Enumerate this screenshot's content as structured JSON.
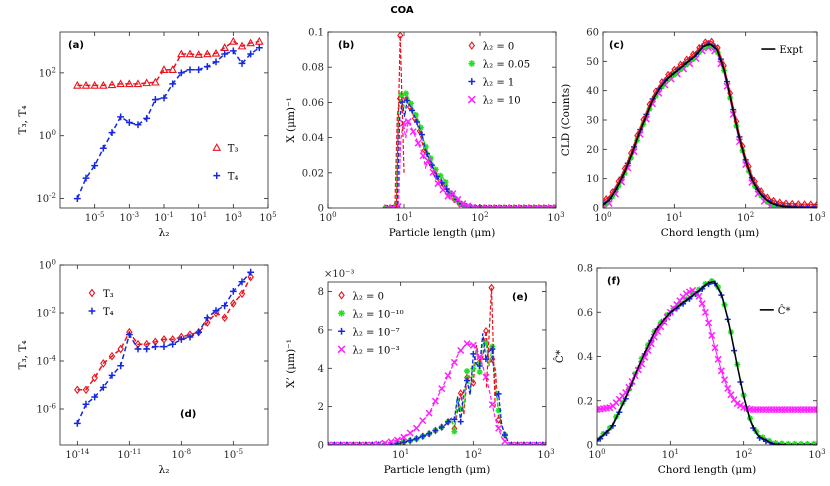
{
  "figure": {
    "title": "COA"
  },
  "colors": {
    "red": "#e8141e",
    "blue": "#1428e0",
    "green": "#22e022",
    "magenta": "#ff22ff",
    "black": "#000000"
  },
  "chart_data": [
    {
      "id": "a",
      "panel_label": "(a)",
      "type": "scatter",
      "xscale": "log",
      "yscale": "log",
      "xlim": [
        -7,
        5
      ],
      "ylim": [
        -2.3,
        3.3
      ],
      "xticks": [
        {
          "v": -5,
          "label": "10",
          "sup": "-5"
        },
        {
          "v": -3,
          "label": "10",
          "sup": "-3"
        },
        {
          "v": -1,
          "label": "10",
          "sup": "-1"
        },
        {
          "v": 1,
          "label": "10",
          "sup": "1"
        },
        {
          "v": 3,
          "label": "10",
          "sup": "3"
        },
        {
          "v": 5,
          "label": "10",
          "sup": "5"
        }
      ],
      "yticks": [
        {
          "v": -2,
          "label": "10",
          "sup": "-2"
        },
        {
          "v": 0,
          "label": "10",
          "sup": "0"
        },
        {
          "v": 2,
          "label": "10",
          "sup": "2"
        }
      ],
      "xlabel": "λ₂",
      "ylabel": "T₃, T₄",
      "series": [
        {
          "name": "T₃",
          "color": "red",
          "marker": "triangle",
          "dashed": true,
          "x": [
            -6,
            -5.5,
            -5,
            -4.5,
            -4,
            -3.5,
            -3,
            -2.5,
            -2,
            -1.5,
            -1,
            -0.5,
            0,
            0.5,
            1,
            1.5,
            2,
            2.5,
            3,
            3.5,
            4,
            4.5
          ],
          "y": [
            1.6,
            1.6,
            1.6,
            1.6,
            1.62,
            1.65,
            1.65,
            1.65,
            1.68,
            1.7,
            2.1,
            2.1,
            2.6,
            2.6,
            2.58,
            2.6,
            2.62,
            2.8,
            3.0,
            2.85,
            2.95,
            3.0
          ]
        },
        {
          "name": "T₄",
          "color": "blue",
          "marker": "plus",
          "dashed": true,
          "x": [
            -6,
            -5.5,
            -5,
            -4.5,
            -4,
            -3.5,
            -3,
            -2.5,
            -2,
            -1.5,
            -1,
            -0.5,
            0,
            0.5,
            1,
            1.5,
            2,
            2.5,
            3,
            3.5,
            4,
            4.5
          ],
          "y": [
            -2.0,
            -1.35,
            -0.95,
            -0.4,
            0.1,
            0.6,
            0.42,
            0.35,
            0.55,
            1.15,
            1.2,
            1.65,
            2.0,
            2.1,
            2.1,
            2.2,
            2.35,
            2.6,
            2.7,
            2.3,
            2.6,
            2.8
          ]
        }
      ],
      "legend": {
        "position": "lower-right",
        "entries": [
          "T₃",
          "T₄"
        ]
      }
    },
    {
      "id": "b",
      "panel_label": "(b)",
      "type": "line",
      "xscale": "log",
      "yscale": "linear",
      "xlim": [
        0,
        3
      ],
      "ylim": [
        0,
        0.1
      ],
      "xticks": [
        {
          "v": 0,
          "label": "10",
          "sup": "0"
        },
        {
          "v": 1,
          "label": "10",
          "sup": "1"
        },
        {
          "v": 2,
          "label": "10",
          "sup": "2"
        },
        {
          "v": 3,
          "label": "10",
          "sup": "3"
        }
      ],
      "yticks": [
        {
          "v": 0,
          "label": "0"
        },
        {
          "v": 0.02,
          "label": "0.02"
        },
        {
          "v": 0.04,
          "label": "0.04"
        },
        {
          "v": 0.06,
          "label": "0.06"
        },
        {
          "v": 0.08,
          "label": "0.08"
        },
        {
          "v": 0.1,
          "label": "0.1"
        }
      ],
      "xlabel": "Particle length (μm)",
      "ylabel": "X (μm)⁻¹",
      "series": [
        {
          "name": "λ₂ = 0",
          "color": "red",
          "marker": "diamond"
        },
        {
          "name": "λ₂ = 0.05",
          "color": "green",
          "marker": "asterisk"
        },
        {
          "name": "λ₂ = 1",
          "color": "blue",
          "marker": "plus"
        },
        {
          "name": "λ₂ = 10",
          "color": "magenta",
          "marker": "cross"
        }
      ],
      "curve_shape": {
        "x": [
          0.0,
          0.8,
          0.88,
          0.9,
          0.93,
          0.97,
          1.0,
          1.05,
          1.1,
          1.15,
          1.2,
          1.25,
          1.3,
          1.35,
          1.4,
          1.45,
          1.5,
          1.6,
          1.7,
          1.8,
          1.9,
          2.0,
          2.5,
          3.0
        ],
        "y": [
          0.0,
          0.0,
          0.0,
          0.04,
          0.07,
          0.05,
          0.064,
          0.06,
          0.055,
          0.05,
          0.045,
          0.035,
          0.03,
          0.025,
          0.02,
          0.017,
          0.015,
          0.008,
          0.003,
          0.001,
          0.0,
          0.0,
          0.0,
          0.0
        ]
      },
      "annotations": {
        "red_peak_x": 0.95,
        "red_peak_y": 0.098
      },
      "legend": {
        "position": "top-right",
        "entries": [
          "λ₂ = 0",
          "λ₂ = 0.05",
          "λ₂ = 1",
          "λ₂ = 10"
        ]
      }
    },
    {
      "id": "c",
      "panel_label": "(c)",
      "type": "line",
      "xscale": "log",
      "yscale": "linear",
      "xlim": [
        0,
        3
      ],
      "ylim": [
        0,
        60
      ],
      "xticks": [
        {
          "v": 0,
          "label": "10",
          "sup": "0"
        },
        {
          "v": 1,
          "label": "10",
          "sup": "1"
        },
        {
          "v": 2,
          "label": "10",
          "sup": "2"
        },
        {
          "v": 3,
          "label": "10",
          "sup": "3"
        }
      ],
      "yticks": [
        {
          "v": 0,
          "label": "0"
        },
        {
          "v": 10,
          "label": "10"
        },
        {
          "v": 20,
          "label": "20"
        },
        {
          "v": 30,
          "label": "30"
        },
        {
          "v": 40,
          "label": "40"
        },
        {
          "v": 50,
          "label": "50"
        },
        {
          "v": 60,
          "label": "60"
        }
      ],
      "xlabel": "Chord length (μm)",
      "ylabel": "CLD (Counts)",
      "expt_curve": {
        "x": [
          0.0,
          0.1,
          0.2,
          0.3,
          0.4,
          0.5,
          0.6,
          0.7,
          0.8,
          0.9,
          1.0,
          1.1,
          1.2,
          1.3,
          1.4,
          1.5,
          1.6,
          1.7,
          1.8,
          1.9,
          2.0,
          2.1,
          2.2,
          2.3,
          2.4,
          2.5,
          2.6,
          2.8,
          3.0
        ],
        "y": [
          1,
          3,
          7,
          12,
          18,
          25,
          31,
          37,
          41,
          44,
          46,
          48,
          50,
          52,
          55,
          56,
          54,
          47,
          36,
          25,
          16,
          9,
          5,
          2.5,
          1.2,
          0.6,
          0.3,
          0.1,
          0
        ]
      },
      "legend": {
        "position": "top-right",
        "entries": [
          "Expt"
        ]
      }
    },
    {
      "id": "d",
      "panel_label": "(d)",
      "type": "scatter",
      "xscale": "log",
      "yscale": "log",
      "xlim": [
        -15,
        -3
      ],
      "ylim": [
        -7.5,
        0
      ],
      "xticks": [
        {
          "v": -14,
          "label": "10",
          "sup": "-14"
        },
        {
          "v": -11,
          "label": "10",
          "sup": "-11"
        },
        {
          "v": -8,
          "label": "10",
          "sup": "-8"
        },
        {
          "v": -5,
          "label": "10",
          "sup": "-5"
        }
      ],
      "yticks": [
        {
          "v": -6,
          "label": "10",
          "sup": "-6"
        },
        {
          "v": -4,
          "label": "10",
          "sup": "-4"
        },
        {
          "v": -2,
          "label": "10",
          "sup": "-2"
        },
        {
          "v": 0,
          "label": "10",
          "sup": "0"
        }
      ],
      "xlabel": "λ₂",
      "ylabel": "T₃, T₄",
      "series": [
        {
          "name": "T₃",
          "color": "red",
          "marker": "diamond",
          "dashed": true,
          "x": [
            -14,
            -13.5,
            -13,
            -12.5,
            -12,
            -11.5,
            -11,
            -10.5,
            -10,
            -9.5,
            -9,
            -8.5,
            -8,
            -7.5,
            -7,
            -6.5,
            -6,
            -5.5,
            -5,
            -4.5,
            -4
          ],
          "y": [
            -5.2,
            -5.2,
            -4.7,
            -4.1,
            -3.8,
            -3.5,
            -2.8,
            -3.3,
            -3.3,
            -3.2,
            -3.1,
            -3.1,
            -3.0,
            -2.9,
            -2.8,
            -2.4,
            -2.0,
            -2.2,
            -1.6,
            -1.2,
            -0.5
          ]
        },
        {
          "name": "T₄",
          "color": "blue",
          "marker": "plus",
          "dashed": true,
          "x": [
            -14,
            -13.5,
            -13,
            -12.5,
            -12,
            -11.5,
            -11,
            -10.5,
            -10,
            -9.5,
            -9,
            -8.5,
            -8,
            -7.5,
            -7,
            -6.5,
            -6,
            -5.5,
            -5,
            -4.5,
            -4
          ],
          "y": [
            -6.6,
            -5.8,
            -5.5,
            -5.1,
            -4.6,
            -4.2,
            -2.9,
            -3.5,
            -3.5,
            -3.4,
            -3.4,
            -3.3,
            -3.1,
            -3.0,
            -2.8,
            -2.2,
            -1.9,
            -1.7,
            -1.1,
            -0.7,
            -0.3
          ]
        }
      ],
      "legend": {
        "position": "top-left",
        "entries": [
          "T₃",
          "T₄"
        ]
      }
    },
    {
      "id": "e",
      "panel_label": "(e)",
      "type": "line",
      "xscale": "log",
      "yscale": "linear",
      "xlim": [
        0,
        3
      ],
      "ylim": [
        0,
        0.0085
      ],
      "exponent_note": "×10⁻³",
      "xticks": [
        {
          "v": 1,
          "label": "10",
          "sup": "1"
        },
        {
          "v": 2,
          "label": "10",
          "sup": "2"
        },
        {
          "v": 3,
          "label": "10",
          "sup": "3"
        }
      ],
      "yticks": [
        {
          "v": 0,
          "label": "0"
        },
        {
          "v": 0.002,
          "label": "2"
        },
        {
          "v": 0.004,
          "label": "4"
        },
        {
          "v": 0.006,
          "label": "6"
        },
        {
          "v": 0.008,
          "label": "8"
        }
      ],
      "xlabel": "Particle length (μm)",
      "ylabel": "X’ (μm)⁻¹",
      "series": [
        {
          "name": "λ₂ = 0",
          "color": "red",
          "marker": "diamond"
        },
        {
          "name": "λ₂ = 10⁻¹⁰",
          "color": "green",
          "marker": "asterisk"
        },
        {
          "name": "λ₂ = 10⁻⁷",
          "color": "blue",
          "marker": "plus"
        },
        {
          "name": "λ₂ = 10⁻³",
          "color": "magenta",
          "marker": "cross"
        }
      ],
      "curve_main": {
        "x": [
          0.0,
          0.8,
          1.0,
          1.2,
          1.4,
          1.6,
          1.8,
          1.9,
          2.0,
          2.1,
          2.2,
          2.25,
          2.3,
          2.4,
          2.5,
          3.0
        ],
        "y": [
          0,
          0,
          0.0001,
          0.0003,
          0.0006,
          0.001,
          0.0018,
          0.0028,
          0.004,
          0.0048,
          0.0052,
          0.0045,
          0.0035,
          0.0008,
          0,
          0
        ]
      },
      "curve_magenta": {
        "x": [
          0.0,
          0.6,
          0.8,
          1.0,
          1.2,
          1.4,
          1.6,
          1.8,
          1.9,
          2.0,
          2.1,
          2.2,
          2.3,
          2.4,
          2.5,
          3.0
        ],
        "y": [
          0,
          0,
          0.0001,
          0.0003,
          0.0008,
          0.0017,
          0.0032,
          0.0048,
          0.0053,
          0.0052,
          0.0045,
          0.0032,
          0.0014,
          0.0003,
          0,
          0
        ]
      },
      "annotations": {
        "red_peak_x": 2.25,
        "red_peak_y": 0.0082
      },
      "legend": {
        "position": "top-left",
        "entries": [
          "λ₂ = 0",
          "λ₂ = 10⁻¹⁰",
          "λ₂ = 10⁻⁷",
          "λ₂ = 10⁻³"
        ]
      }
    },
    {
      "id": "f",
      "panel_label": "(f)",
      "type": "line",
      "xscale": "log",
      "yscale": "linear",
      "xlim": [
        0,
        3
      ],
      "ylim": [
        0,
        0.8
      ],
      "xticks": [
        {
          "v": 0,
          "label": "10",
          "sup": "0"
        },
        {
          "v": 1,
          "label": "10",
          "sup": "1"
        },
        {
          "v": 2,
          "label": "10",
          "sup": "2"
        },
        {
          "v": 3,
          "label": "10",
          "sup": "3"
        }
      ],
      "yticks": [
        {
          "v": 0,
          "label": "0"
        },
        {
          "v": 0.2,
          "label": "0.2"
        },
        {
          "v": 0.4,
          "label": "0.4"
        },
        {
          "v": 0.6,
          "label": "0.6"
        },
        {
          "v": 0.8,
          "label": "0.8"
        }
      ],
      "xlabel": "Chord length (μm)",
      "ylabel": "Ĉ*",
      "expt_curve": {
        "x": [
          0.0,
          0.2,
          0.4,
          0.6,
          0.8,
          1.0,
          1.2,
          1.4,
          1.5,
          1.6,
          1.7,
          1.8,
          1.9,
          2.0,
          2.1,
          2.2,
          2.4,
          2.6,
          3.0
        ],
        "y": [
          0.02,
          0.08,
          0.22,
          0.38,
          0.52,
          0.6,
          0.65,
          0.7,
          0.73,
          0.74,
          0.68,
          0.55,
          0.38,
          0.22,
          0.1,
          0.04,
          0.005,
          0,
          0
        ]
      },
      "magenta_curve": {
        "x": [
          0.0,
          0.2,
          0.4,
          0.6,
          0.8,
          1.0,
          1.1,
          1.2,
          1.3,
          1.4,
          1.5,
          1.6,
          1.7,
          1.8,
          1.9,
          2.0,
          2.1,
          2.2,
          2.4,
          3.0
        ],
        "y": [
          0.16,
          0.17,
          0.24,
          0.36,
          0.5,
          0.6,
          0.64,
          0.68,
          0.7,
          0.67,
          0.58,
          0.45,
          0.33,
          0.24,
          0.19,
          0.17,
          0.16,
          0.16,
          0.16,
          0.16
        ]
      },
      "legend": {
        "position": "top-right",
        "entries": [
          "Ĉ*"
        ]
      }
    }
  ]
}
